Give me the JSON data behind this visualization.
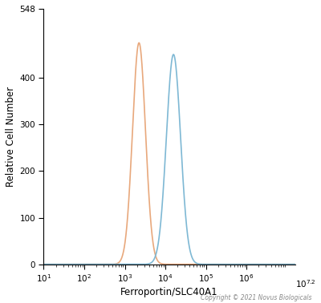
{
  "title": "",
  "xlabel": "Ferroportin/SLC40A1",
  "ylabel": "Relative Cell Number",
  "copyright": "Copyright © 2021 Novus Biologicals",
  "xlim_log": [
    1,
    7.2
  ],
  "ylim": [
    0,
    548
  ],
  "yticks": [
    0,
    100,
    200,
    300,
    400,
    548
  ],
  "orange_color": "#E8A87C",
  "blue_color": "#7EB8D4",
  "orange_peak_log": 3.35,
  "orange_peak_height": 475,
  "orange_sigma": 0.16,
  "blue_peak_log": 4.2,
  "blue_peak_height": 450,
  "blue_sigma": 0.175,
  "background_color": "#ffffff",
  "line_width": 1.2,
  "fig_width": 4.0,
  "fig_height": 3.78,
  "dpi": 100
}
